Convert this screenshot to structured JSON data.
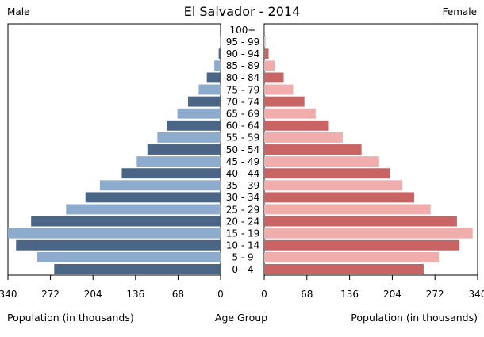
{
  "header": {
    "title": "El Salvador - 2014",
    "left_label": "Male",
    "right_label": "Female"
  },
  "footer": {
    "left_xlabel": "Population (in thousands)",
    "center_label": "Age Group",
    "right_xlabel": "Population (in thousands)"
  },
  "colors": {
    "male_dark": "#4a6585",
    "male_light": "#8dabcc",
    "female_dark": "#c96464",
    "female_light": "#f0adab"
  },
  "chart_data": {
    "type": "bar",
    "title": "El Salvador - 2014",
    "categories": [
      "0 - 4",
      "5 - 9",
      "10 - 14",
      "15 - 19",
      "20 - 24",
      "25 - 29",
      "30 - 34",
      "35 - 39",
      "40 - 44",
      "45 - 49",
      "50 - 54",
      "55 - 59",
      "60 - 64",
      "65 - 69",
      "70 - 74",
      "75 - 79",
      "80 - 84",
      "85 - 89",
      "90 - 94",
      "95 - 99",
      "100+"
    ],
    "series": [
      {
        "name": "Male",
        "values": [
          266,
          293,
          327,
          340,
          303,
          247,
          216,
          193,
          158,
          134,
          117,
          101,
          86,
          69,
          52,
          35,
          22,
          10,
          3,
          1,
          0
        ]
      },
      {
        "name": "Female",
        "values": [
          254,
          278,
          311,
          332,
          307,
          265,
          239,
          220,
          200,
          183,
          155,
          125,
          103,
          82,
          64,
          46,
          31,
          17,
          7,
          2,
          1
        ]
      }
    ],
    "xlabel": "Population (in thousands)",
    "ylabel": "Age Group",
    "xticks": [
      340,
      272,
      204,
      136,
      68,
      0
    ],
    "xlim": [
      0,
      340
    ],
    "grid": false
  }
}
